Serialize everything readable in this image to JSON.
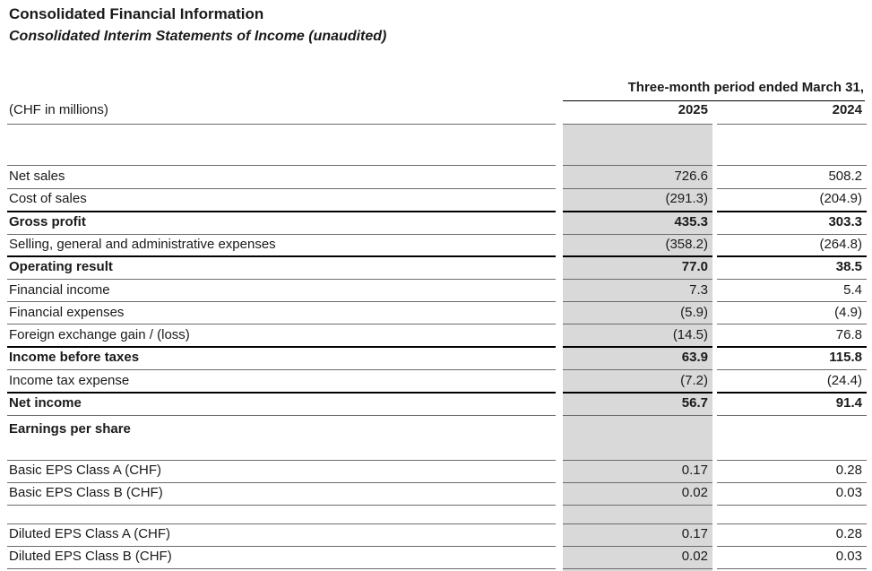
{
  "header": {
    "title": "Consolidated Financial Information",
    "subtitle": "Consolidated Interim Statements of Income (unaudited)"
  },
  "table": {
    "period_label": "Three-month period ended March 31,",
    "unit_label": "(CHF in millions)",
    "col_2025": "2025",
    "col_2024": "2024",
    "rows": [
      {
        "label": "Net sales",
        "v2025": "726.6",
        "v2024": "508.2",
        "bold": false
      },
      {
        "label": "Cost of sales",
        "v2025": "(291.3)",
        "v2024": "(204.9)",
        "bold": false
      },
      {
        "label": "Gross profit",
        "v2025": "435.3",
        "v2024": "303.3",
        "bold": true
      },
      {
        "label": "Selling, general and administrative expenses",
        "v2025": "(358.2)",
        "v2024": "(264.8)",
        "bold": false
      },
      {
        "label": "Operating result",
        "v2025": "77.0",
        "v2024": "38.5",
        "bold": true
      },
      {
        "label": "Financial income",
        "v2025": "7.3",
        "v2024": "5.4",
        "bold": false
      },
      {
        "label": "Financial expenses",
        "v2025": "(5.9)",
        "v2024": "(4.9)",
        "bold": false
      },
      {
        "label": "Foreign exchange gain / (loss)",
        "v2025": "(14.5)",
        "v2024": "76.8",
        "bold": false
      },
      {
        "label": "Income before taxes",
        "v2025": "63.9",
        "v2024": "115.8",
        "bold": true
      },
      {
        "label": "Income tax expense",
        "v2025": "(7.2)",
        "v2024": "(24.4)",
        "bold": false
      },
      {
        "label": "Net income",
        "v2025": "56.7",
        "v2024": "91.4",
        "bold": true
      }
    ],
    "eps_heading": "Earnings per share",
    "eps_basic": [
      {
        "label": "Basic EPS Class A (CHF)",
        "v2025": "0.17",
        "v2024": "0.28"
      },
      {
        "label": "Basic EPS Class B (CHF)",
        "v2025": "0.02",
        "v2024": "0.03"
      }
    ],
    "eps_diluted": [
      {
        "label": "Diluted EPS Class A (CHF)",
        "v2025": "0.17",
        "v2024": "0.28"
      },
      {
        "label": "Diluted EPS Class B (CHF)",
        "v2025": "0.02",
        "v2024": "0.03"
      }
    ]
  }
}
